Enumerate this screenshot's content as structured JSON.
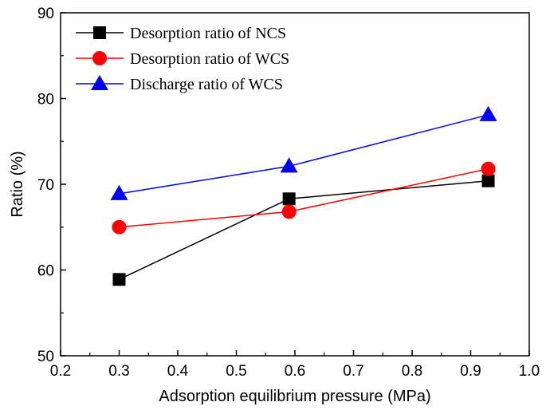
{
  "chart_data": {
    "type": "line",
    "title": "",
    "xlabel": "Adsorption equilibrium pressure (MPa)",
    "ylabel": "Ratio (%)",
    "xlim": [
      0.2,
      1.0
    ],
    "ylim": [
      50,
      90
    ],
    "xticks": [
      "0.2",
      "0.3",
      "0.4",
      "0.5",
      "0.6",
      "0.7",
      "0.8",
      "0.9",
      "1.0"
    ],
    "yticks": [
      "50",
      "60",
      "70",
      "80",
      "90"
    ],
    "grid": false,
    "legend_position": "top-left",
    "series": [
      {
        "name": "Desorption ratio of NCS",
        "marker": "square",
        "color": "#000000",
        "x": [
          0.3,
          0.59,
          0.93
        ],
        "y": [
          58.9,
          68.3,
          70.4
        ]
      },
      {
        "name": "Desorption ratio of WCS",
        "marker": "circle",
        "color": "#ff0000",
        "x": [
          0.3,
          0.59,
          0.93
        ],
        "y": [
          65.0,
          66.8,
          71.8
        ]
      },
      {
        "name": "Discharge ratio of WCS",
        "marker": "triangle",
        "color": "#0000ff",
        "x": [
          0.3,
          0.59,
          0.93
        ],
        "y": [
          68.9,
          72.1,
          78.1
        ]
      }
    ]
  }
}
